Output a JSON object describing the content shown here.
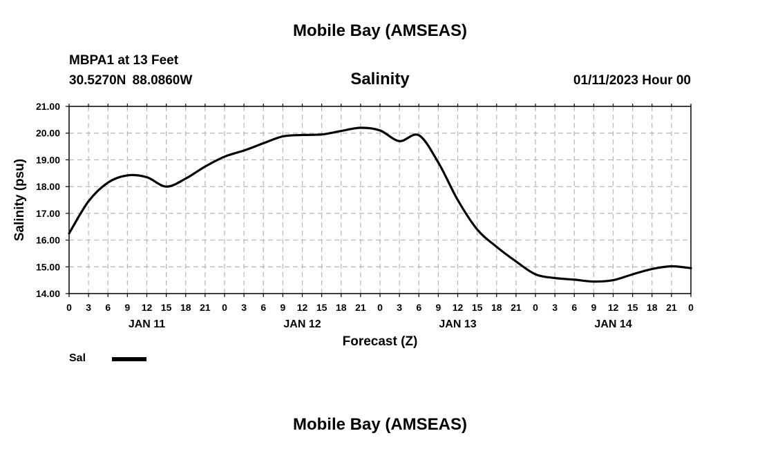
{
  "header": {
    "main_title": "Mobile Bay (AMSEAS)",
    "station": "MBPA1 at 13 Feet",
    "coords": "30.5270N  88.0860W",
    "run_time": "01/11/2023 Hour 00"
  },
  "footer": {
    "title": "Mobile Bay (AMSEAS)"
  },
  "legend": {
    "label": "Sal",
    "color": "#000000"
  },
  "chart_data": {
    "type": "line",
    "title": "Salinity",
    "xlabel": "Forecast (Z)",
    "ylabel": "Salinity (psu)",
    "ylim": [
      14.0,
      21.0
    ],
    "y_ticks": [
      "14.00",
      "15.00",
      "16.00",
      "17.00",
      "18.00",
      "19.00",
      "20.00",
      "21.00"
    ],
    "x_range_hours": [
      0,
      96
    ],
    "x_tick_step_hours": 3,
    "x_tick_labels": [
      "0",
      "3",
      "6",
      "9",
      "12",
      "15",
      "18",
      "21",
      "0",
      "3",
      "6",
      "9",
      "12",
      "15",
      "18",
      "21",
      "0",
      "3",
      "6",
      "9",
      "12",
      "15",
      "18",
      "21",
      "0",
      "3",
      "6",
      "9",
      "12",
      "15",
      "18",
      "21",
      "0"
    ],
    "day_labels": [
      {
        "label": "JAN 11",
        "hour": 12
      },
      {
        "label": "JAN 12",
        "hour": 36
      },
      {
        "label": "JAN 13",
        "hour": 60
      },
      {
        "label": "JAN 14",
        "hour": 84
      }
    ],
    "series": [
      {
        "name": "Sal",
        "hours": [
          0,
          3,
          6,
          9,
          12,
          15,
          18,
          21,
          24,
          27,
          30,
          33,
          36,
          39,
          42,
          45,
          48,
          51,
          54,
          57,
          60,
          63,
          66,
          69,
          72,
          75,
          78,
          81,
          84,
          87,
          90,
          93,
          96
        ],
        "values": [
          16.25,
          17.45,
          18.15,
          18.42,
          18.35,
          18.0,
          18.3,
          18.75,
          19.12,
          19.35,
          19.62,
          19.88,
          19.93,
          19.95,
          20.08,
          20.2,
          20.1,
          19.7,
          19.92,
          18.9,
          17.5,
          16.4,
          15.75,
          15.2,
          14.72,
          14.58,
          14.52,
          14.45,
          14.5,
          14.72,
          14.92,
          15.02,
          14.95
        ]
      }
    ]
  }
}
